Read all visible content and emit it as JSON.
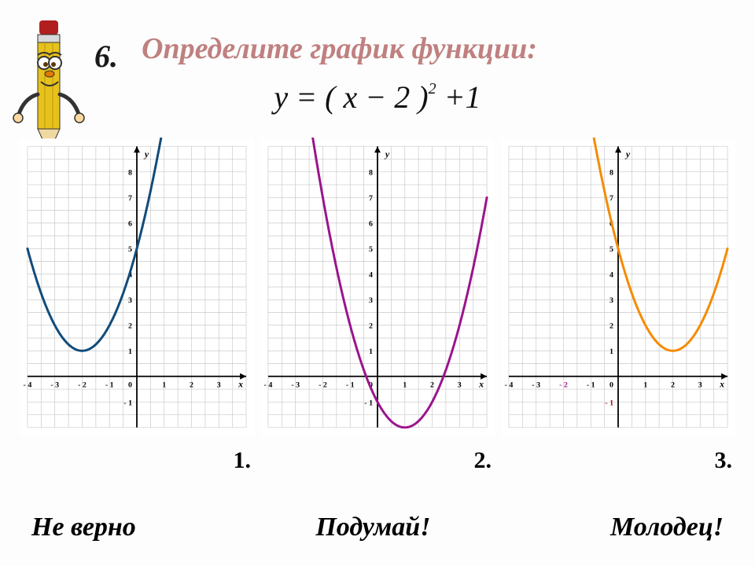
{
  "question_number": "6.",
  "title": "Определите  график  функции:",
  "formula": {
    "prefix": "y = ( x − 2 )",
    "power": "2",
    "suffix": "+1"
  },
  "plot": {
    "x_range": [
      -4,
      4
    ],
    "y_range": [
      -2,
      9
    ],
    "x_ticks_major": [
      -4,
      -3,
      -2,
      -1,
      1,
      2,
      3
    ],
    "x_tick_labels": [
      "- 4",
      "- 3",
      "- 2",
      "- 1",
      "1",
      "2",
      "3"
    ],
    "y_ticks_major": [
      -1,
      1,
      2,
      3,
      4,
      5,
      6,
      7,
      8
    ],
    "x_axis_label": "x",
    "y_axis_label": "y",
    "origin_label": "0",
    "grid_step": 0.5,
    "grid_color": "#cacaca",
    "grid_width": 0.7,
    "axis_color": "#000000",
    "axis_width": 1.8,
    "tick_font_size": 10,
    "panel_bg": "#ffffff"
  },
  "series": [
    {
      "label": "1.",
      "vertex_x": -2,
      "vertex_y": 1,
      "color": "#104b7a",
      "width": 3
    },
    {
      "label": "2.",
      "vertex_x": 1,
      "vertex_y": -2,
      "color": "#9a148c",
      "width": 3
    },
    {
      "label": "3.",
      "vertex_x": 2,
      "vertex_y": 1,
      "color": "#f58b00",
      "width": 3
    }
  ],
  "third_xtick_special": {
    "position": -2,
    "label": "- 2",
    "color": "#9a148c"
  },
  "third_neg1_ytick": {
    "position": -1,
    "label": "- 1",
    "color": "#b00000"
  },
  "answers": [
    {
      "text": "Не верно",
      "color": "#000000"
    },
    {
      "text": "Подумай!",
      "color": "#000000"
    },
    {
      "text": "Молодец!",
      "color": "#000000"
    }
  ]
}
